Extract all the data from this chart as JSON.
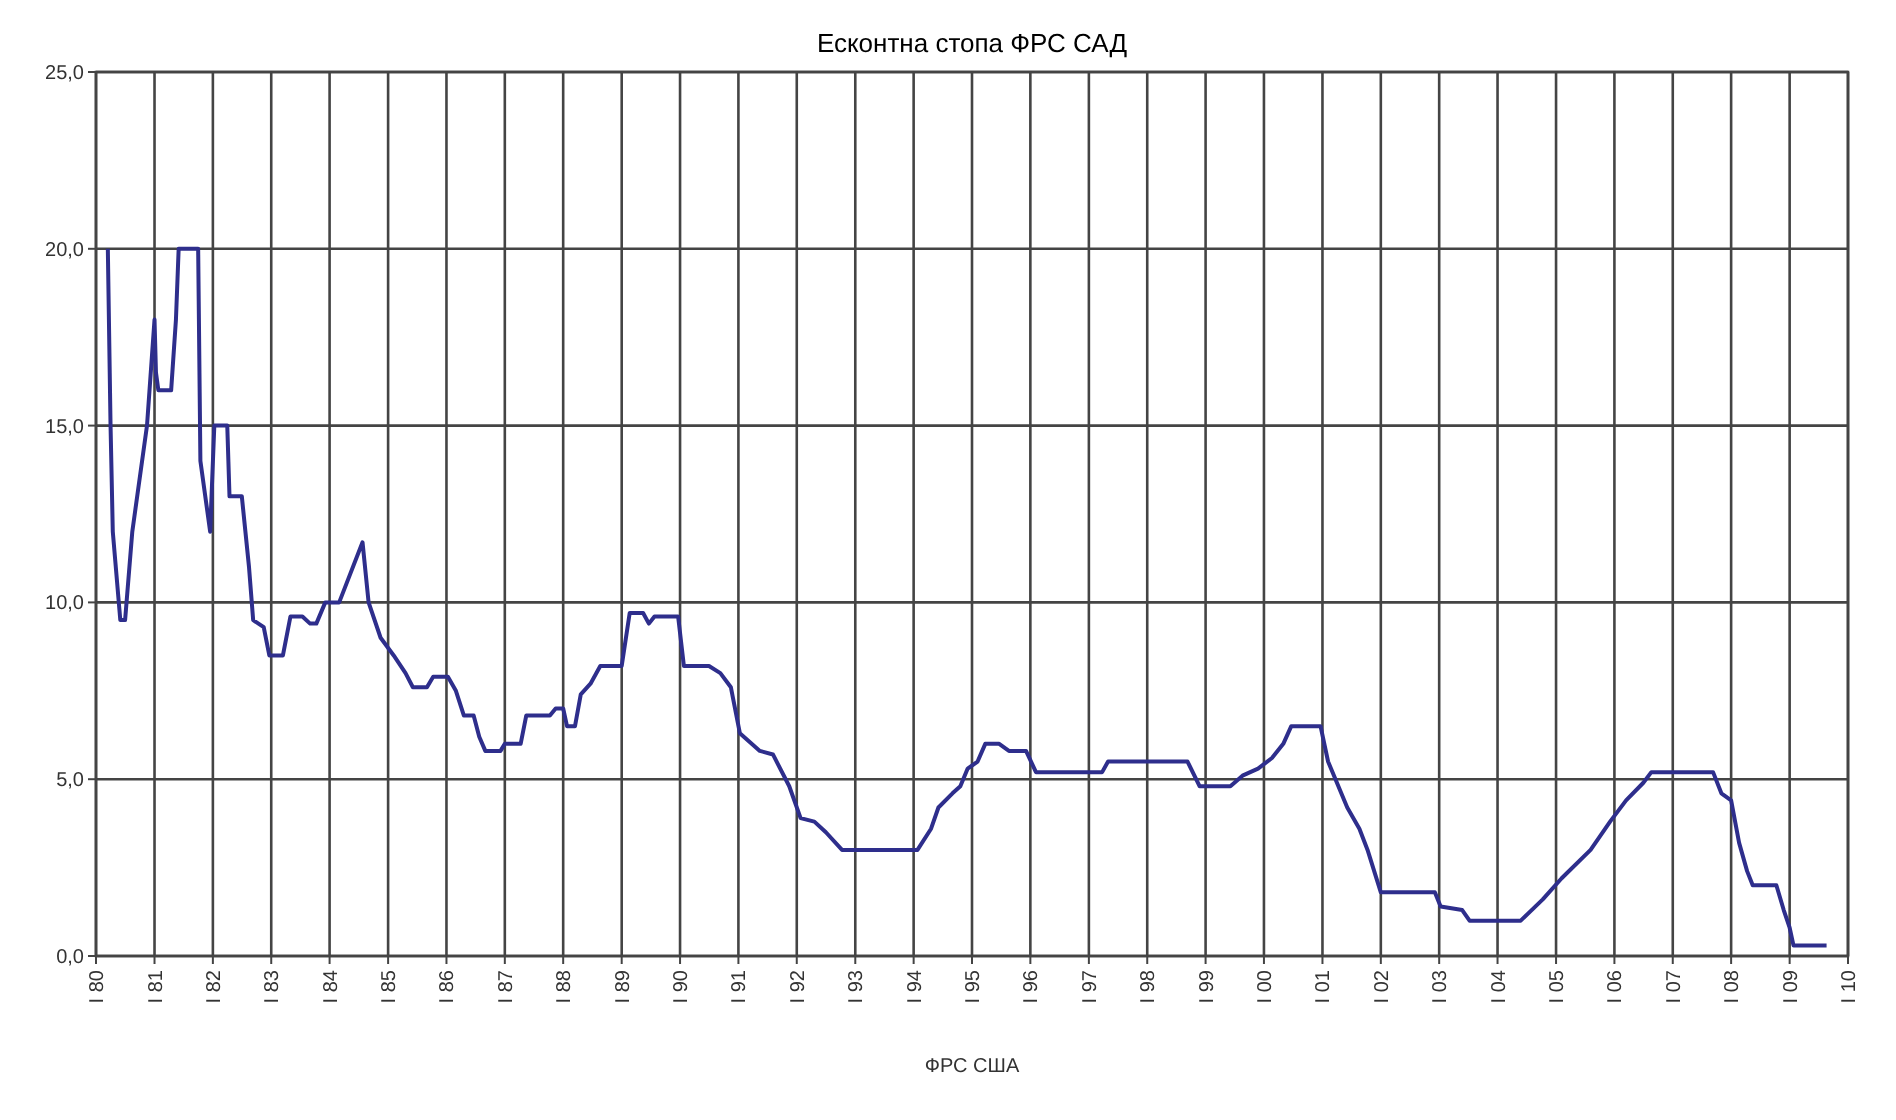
{
  "chart_data": {
    "type": "line",
    "title": "Есконтна стопа ФРС САД",
    "x": [
      "1980-03-15",
      "1980-04-01",
      "1980-04-15",
      "1980-06-01",
      "1980-07-01",
      "1980-08-15",
      "1980-11-15",
      "1981-01-01",
      "1981-01-10",
      "1981-01-25",
      "1981-04-15",
      "1981-05-15",
      "1981-06-01",
      "1981-10-01",
      "1981-10-15",
      "1981-12-15",
      "1982-01-10",
      "1982-04-01",
      "1982-04-15",
      "1982-07-01",
      "1982-08-15",
      "1982-09-10",
      "1982-11-15",
      "1982-12-20",
      "1983-03-15",
      "1983-05-01",
      "1983-07-15",
      "1983-09-01",
      "1983-10-10",
      "1983-12-05",
      "1984-03-01",
      "1984-07-25",
      "1984-09-01",
      "1984-11-15",
      "1985-02-05",
      "1985-04-20",
      "1985-06-05",
      "1985-09-01",
      "1985-10-10",
      "1986-01-10",
      "1986-03-01",
      "1986-04-20",
      "1986-06-20",
      "1986-07-25",
      "1986-09-01",
      "1986-12-05",
      "1987-01-01",
      "1987-04-10",
      "1987-05-15",
      "1987-10-10",
      "1987-11-15",
      "1988-01-01",
      "1988-01-25",
      "1988-03-15",
      "1988-04-20",
      "1988-06-20",
      "1988-08-20",
      "1989-01-01",
      "1989-02-20",
      "1989-05-15",
      "1989-06-20",
      "1989-07-25",
      "1989-12-20",
      "1990-01-25",
      "1990-07-01",
      "1990-09-10",
      "1990-11-15",
      "1991-01-10",
      "1991-05-15",
      "1991-08-05",
      "1991-11-15",
      "1992-01-25",
      "1992-04-20",
      "1992-07-01",
      "1992-10-10",
      "1994-01-25",
      "1994-04-20",
      "1994-06-05",
      "1994-09-01",
      "1994-10-20",
      "1994-12-05",
      "1995-02-05",
      "1995-03-25",
      "1995-06-20",
      "1995-08-20",
      "1995-12-05",
      "1996-02-05",
      "1997-03-25",
      "1997-05-01",
      "1998-09-10",
      "1998-11-25",
      "1999-06-05",
      "1999-08-20",
      "1999-11-25",
      "2000-02-20",
      "2000-05-01",
      "2000-06-20",
      "2000-12-20",
      "2001-02-05",
      "2001-06-05",
      "2001-08-20",
      "2001-10-10",
      "2002-01-01",
      "2002-12-05",
      "2003-01-10",
      "2003-05-25",
      "2003-07-10",
      "2004-05-25",
      "2004-10-10",
      "2005-02-05",
      "2005-08-05",
      "2005-12-05",
      "2006-03-15",
      "2006-07-01",
      "2006-08-20",
      "2007-09-10",
      "2007-11-01",
      "2008-01-01",
      "2008-02-20",
      "2008-04-10",
      "2008-05-15",
      "2008-10-10",
      "2008-11-25",
      "2009-01-01",
      "2009-01-25",
      "2009-08-20"
    ],
    "series": [
      {
        "color": "#2e2e8c",
        "values": [
          20,
          15,
          12,
          9.5,
          9.5,
          12,
          15,
          18,
          16.5,
          16,
          16,
          18,
          20,
          20,
          14,
          12,
          15,
          15,
          13,
          13,
          11,
          9.5,
          9.3,
          8.5,
          8.5,
          9.6,
          9.6,
          9.4,
          9.4,
          10,
          10,
          11.7,
          10,
          9,
          8.5,
          8,
          7.6,
          7.6,
          7.9,
          7.9,
          7.5,
          6.8,
          6.8,
          6.2,
          5.8,
          5.8,
          6,
          6,
          6.8,
          6.8,
          7,
          7,
          6.5,
          6.5,
          7.4,
          7.7,
          8.2,
          8.2,
          9.7,
          9.7,
          9.4,
          9.6,
          9.6,
          8.2,
          8.2,
          8,
          7.6,
          6.3,
          5.8,
          5.7,
          4.8,
          3.9,
          3.8,
          3.5,
          3.0,
          3.0,
          3.6,
          4.2,
          4.6,
          4.8,
          5.3,
          5.5,
          6.0,
          6.0,
          5.8,
          5.8,
          5.2,
          5.2,
          5.5,
          5.5,
          4.8,
          4.8,
          5.1,
          5.3,
          5.6,
          6.0,
          6.5,
          6.5,
          5.5,
          4.2,
          3.6,
          3.0,
          1.8,
          1.8,
          1.4,
          1.3,
          1.0,
          1.0,
          1.6,
          2.2,
          3.0,
          3.8,
          4.4,
          4.9,
          5.2,
          5.2,
          4.6,
          4.4,
          3.2,
          2.4,
          2.0,
          2.0,
          1.3,
          0.8,
          0.3,
          0.3
        ]
      }
    ],
    "xlim": [
      "1980-01-01",
      "2010-01-01"
    ],
    "xticks": [
      {
        "value": "1980-01-01",
        "label": "I 80"
      },
      {
        "value": "1981-01-01",
        "label": "I 81"
      },
      {
        "value": "1982-01-01",
        "label": "I 82"
      },
      {
        "value": "1983-01-01",
        "label": "I 83"
      },
      {
        "value": "1984-01-01",
        "label": "I 84"
      },
      {
        "value": "1985-01-01",
        "label": "I 85"
      },
      {
        "value": "1986-01-01",
        "label": "I 86"
      },
      {
        "value": "1987-01-01",
        "label": "I 87"
      },
      {
        "value": "1988-01-01",
        "label": "I 88"
      },
      {
        "value": "1989-01-01",
        "label": "I 89"
      },
      {
        "value": "1990-01-01",
        "label": "I 90"
      },
      {
        "value": "1991-01-01",
        "label": "I 91"
      },
      {
        "value": "1992-01-01",
        "label": "I 92"
      },
      {
        "value": "1993-01-01",
        "label": "I 93"
      },
      {
        "value": "1994-01-01",
        "label": "I 94"
      },
      {
        "value": "1995-01-01",
        "label": "I 95"
      },
      {
        "value": "1996-01-01",
        "label": "I 96"
      },
      {
        "value": "1997-01-01",
        "label": "I 97"
      },
      {
        "value": "1998-01-01",
        "label": "I 98"
      },
      {
        "value": "1999-01-01",
        "label": "I 99"
      },
      {
        "value": "2000-01-01",
        "label": "I 00"
      },
      {
        "value": "2001-01-01",
        "label": "I 01"
      },
      {
        "value": "2002-01-01",
        "label": "I 02"
      },
      {
        "value": "2003-01-01",
        "label": "I 03"
      },
      {
        "value": "2004-01-01",
        "label": "I 04"
      },
      {
        "value": "2005-01-01",
        "label": "I 05"
      },
      {
        "value": "2006-01-01",
        "label": "I 06"
      },
      {
        "value": "2007-01-01",
        "label": "I 07"
      },
      {
        "value": "2008-01-01",
        "label": "I 08"
      },
      {
        "value": "2009-01-01",
        "label": "I 09"
      },
      {
        "value": "2010-01-01",
        "label": "I 10"
      }
    ],
    "ylim": [
      0,
      25
    ],
    "yticks": [
      {
        "value": 0,
        "label": "0,0"
      },
      {
        "value": 5,
        "label": "5,0"
      },
      {
        "value": 10,
        "label": "10,0"
      },
      {
        "value": 15,
        "label": "15,0"
      },
      {
        "value": 20,
        "label": "20,0"
      },
      {
        "value": 25,
        "label": "25,0"
      }
    ],
    "grid": true,
    "marker": "none",
    "line_style": "solid",
    "annotations": [
      "ФРС США"
    ]
  }
}
